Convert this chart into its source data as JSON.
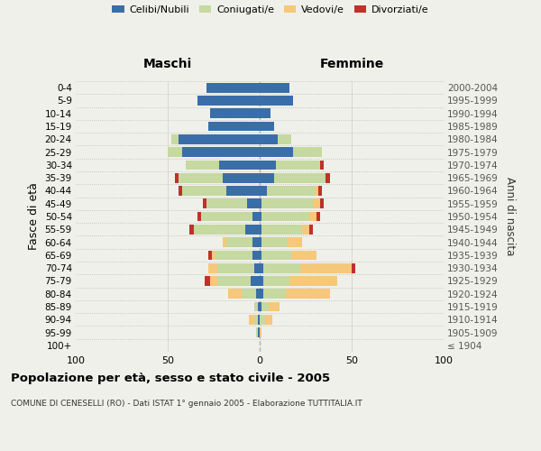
{
  "age_groups": [
    "100+",
    "95-99",
    "90-94",
    "85-89",
    "80-84",
    "75-79",
    "70-74",
    "65-69",
    "60-64",
    "55-59",
    "50-54",
    "45-49",
    "40-44",
    "35-39",
    "30-34",
    "25-29",
    "20-24",
    "15-19",
    "10-14",
    "5-9",
    "0-4"
  ],
  "birth_years": [
    "≤ 1904",
    "1905-1909",
    "1910-1914",
    "1915-1919",
    "1920-1924",
    "1925-1929",
    "1930-1934",
    "1935-1939",
    "1940-1944",
    "1945-1949",
    "1950-1954",
    "1955-1959",
    "1960-1964",
    "1965-1969",
    "1970-1974",
    "1975-1979",
    "1980-1984",
    "1985-1989",
    "1990-1994",
    "1995-1999",
    "2000-2004"
  ],
  "maschi": {
    "celibi": [
      0,
      1,
      1,
      1,
      2,
      5,
      3,
      4,
      4,
      8,
      4,
      7,
      18,
      20,
      22,
      42,
      44,
      28,
      27,
      34,
      29
    ],
    "coniugati": [
      0,
      1,
      2,
      2,
      8,
      18,
      20,
      20,
      14,
      28,
      28,
      22,
      24,
      24,
      18,
      8,
      4,
      0,
      0,
      0,
      0
    ],
    "vedovi": [
      0,
      0,
      3,
      0,
      7,
      4,
      5,
      2,
      2,
      0,
      0,
      0,
      0,
      0,
      0,
      0,
      0,
      0,
      0,
      0,
      0
    ],
    "divorziati": [
      0,
      0,
      0,
      0,
      0,
      3,
      0,
      2,
      0,
      2,
      2,
      2,
      2,
      2,
      0,
      0,
      0,
      0,
      0,
      0,
      0
    ]
  },
  "femmine": {
    "nubili": [
      0,
      0,
      0,
      1,
      2,
      2,
      2,
      1,
      1,
      1,
      1,
      1,
      4,
      8,
      9,
      18,
      10,
      8,
      6,
      18,
      16
    ],
    "coniugate": [
      0,
      0,
      3,
      4,
      12,
      14,
      20,
      16,
      14,
      22,
      26,
      28,
      26,
      28,
      24,
      16,
      7,
      0,
      0,
      0,
      0
    ],
    "vedove": [
      0,
      1,
      4,
      6,
      24,
      26,
      28,
      14,
      8,
      4,
      4,
      4,
      2,
      0,
      0,
      0,
      0,
      0,
      0,
      0,
      0
    ],
    "divorziate": [
      0,
      0,
      0,
      0,
      0,
      0,
      2,
      0,
      0,
      2,
      2,
      2,
      2,
      2,
      2,
      0,
      0,
      0,
      0,
      0,
      0
    ]
  },
  "colors": {
    "celibi": "#3a6ea8",
    "coniugati": "#c5d9a0",
    "vedovi": "#f5c87a",
    "divorziati": "#c0312b"
  },
  "xlim": 100,
  "title": "Popolazione per età, sesso e stato civile - 2005",
  "subtitle": "COMUNE DI CENESELLI (RO) - Dati ISTAT 1° gennaio 2005 - Elaborazione TUTTITALIA.IT",
  "ylabel_left": "Fasce di età",
  "ylabel_right": "Anni di nascita",
  "header_maschi": "Maschi",
  "header_femmine": "Femmine",
  "legend_labels": [
    "Celibi/Nubili",
    "Coniugati/e",
    "Vedovi/e",
    "Divorziati/e"
  ],
  "bg_color": "#f0f0ea"
}
